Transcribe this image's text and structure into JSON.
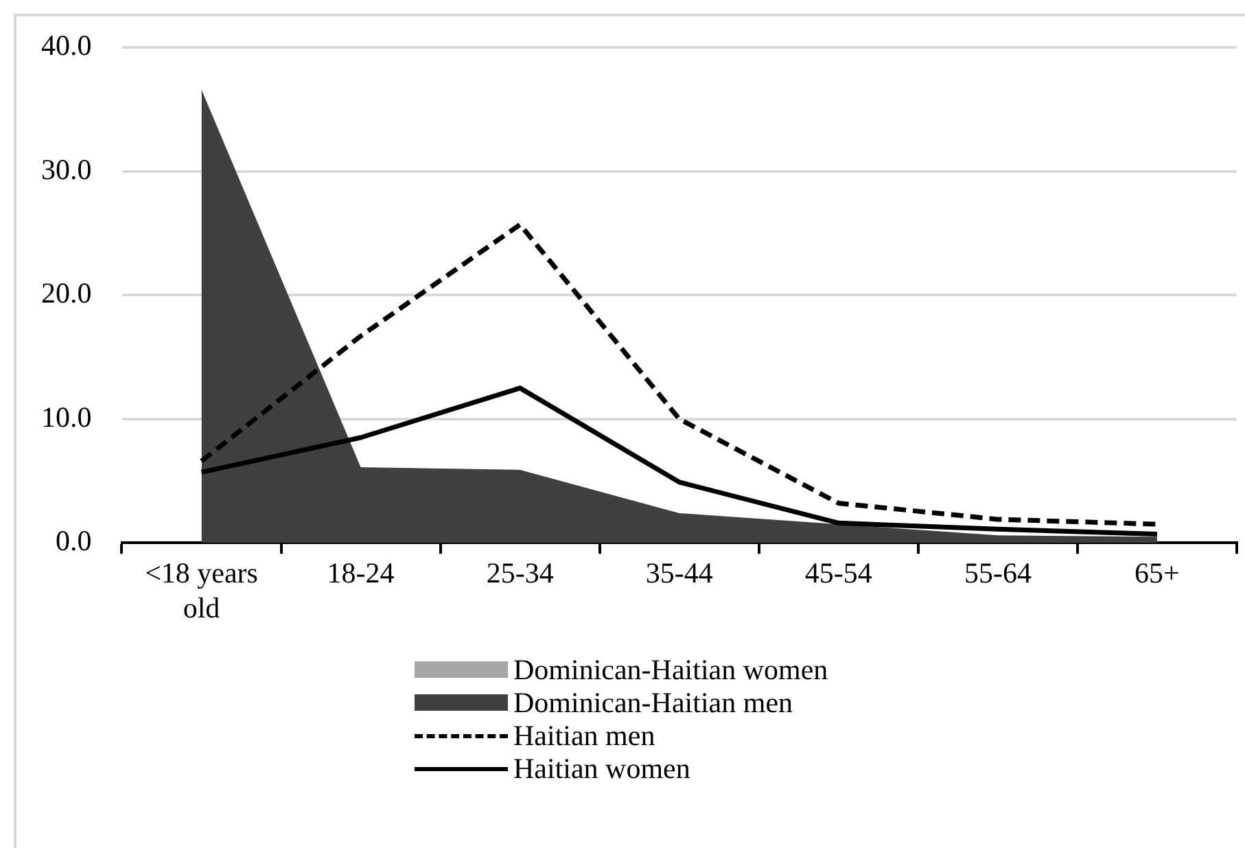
{
  "chart_data": {
    "type": "area",
    "categories": [
      "<18 years old",
      "18-24",
      "25-34",
      "35-44",
      "45-54",
      "55-64",
      "65+"
    ],
    "series": [
      {
        "name": "Dominican-Haitian women",
        "color": "#a6a6a6",
        "values": [
          null,
          null,
          null,
          null,
          null,
          null,
          null
        ]
      },
      {
        "name": "Dominican-Haitian men",
        "color": "#404040",
        "values": [
          36.6,
          6.1,
          5.9,
          2.4,
          1.5,
          0.6,
          0.5
        ]
      },
      {
        "name": "Haitian men",
        "type": "line",
        "color": "#000000",
        "line_style": "dashed",
        "values": [
          6.6,
          16.7,
          25.7,
          10.0,
          3.2,
          1.9,
          1.5
        ]
      },
      {
        "name": "Haitian women",
        "type": "line",
        "color": "#000000",
        "line_style": "solid",
        "values": [
          5.7,
          8.5,
          12.5,
          4.9,
          1.6,
          1.1,
          0.7
        ]
      }
    ],
    "ylim": [
      0,
      40
    ],
    "yticks": [
      {
        "value": 0,
        "label": "0.0"
      },
      {
        "value": 10,
        "label": "10.0"
      },
      {
        "value": 20,
        "label": "20.0"
      },
      {
        "value": 30,
        "label": "30.0"
      },
      {
        "value": 40,
        "label": "40.0"
      }
    ],
    "grid": "y",
    "legend": "bottom",
    "marker": "none"
  }
}
